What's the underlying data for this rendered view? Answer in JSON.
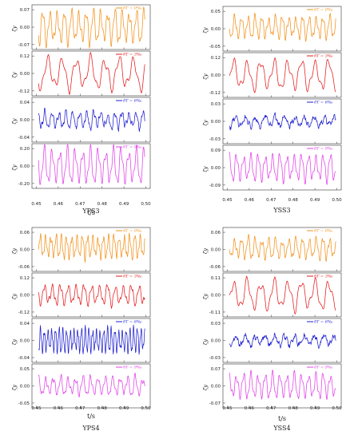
{
  "figure": {
    "colors": {
      "orange": "#f2921c",
      "red": "#e31a1c",
      "blue": "#1f1fd0",
      "magenta": "#e040e8"
    }
  },
  "chart_data": [
    {
      "id": "YPS3",
      "type": "line",
      "caption": "YPS3",
      "xlabel": "t/s",
      "xlim": [
        0.448,
        0.502
      ],
      "xticks": [
        "0.45",
        "0.46",
        "0.47",
        "0.48",
        "0.49",
        "0.50"
      ],
      "panels": [
        {
          "legend": "δT = 0‰",
          "color": "#f2921c",
          "ylabel": "ζy",
          "ylim": [
            -0.09,
            0.09
          ],
          "yticks": [
            "0.07",
            "0.00",
            "-0.07"
          ],
          "period": 0.0033,
          "amplitude": 0.055,
          "noise": 0.012,
          "dc": 0.0
        },
        {
          "legend": "δT = 3‰",
          "color": "#e31a1c",
          "ylabel": "ζy",
          "ylim": [
            -0.15,
            0.15
          ],
          "yticks": [
            "0.12",
            "0.00",
            "-0.12"
          ],
          "period": 0.0065,
          "amplitude": 0.09,
          "noise": 0.012,
          "dc": 0.0
        },
        {
          "legend": "δT = 6‰",
          "color": "#1f1fd0",
          "ylabel": "ζy",
          "ylim": [
            -0.06,
            0.06
          ],
          "yticks": [
            "0.04",
            "0.00",
            "-0.04"
          ],
          "period": 0.0032,
          "amplitude": 0.018,
          "noise": 0.012,
          "dc": 0.0
        },
        {
          "legend": "δT = 9‰",
          "color": "#e040e8",
          "ylabel": "ζy",
          "ylim": [
            -0.27,
            0.27
          ],
          "yticks": [
            "0.20",
            "0.00",
            "-0.20"
          ],
          "period": 0.0035,
          "amplitude": 0.18,
          "noise": 0.004,
          "dc": 0.0
        }
      ]
    },
    {
      "id": "YSS3",
      "type": "line",
      "caption": "YSS3",
      "xlabel": "",
      "xlim": [
        0.448,
        0.502
      ],
      "xticks": [
        "0.45",
        "0.46",
        "0.47",
        "0.48",
        "0.49",
        "0.50"
      ],
      "panels": [
        {
          "legend": "δT = 0‰",
          "color": "#f2921c",
          "ylabel": "ζy",
          "ylim": [
            -0.075,
            0.075
          ],
          "yticks": [
            "0.05",
            "0.00",
            "-0.05"
          ],
          "period": 0.0031,
          "amplitude": 0.032,
          "noise": 0.009,
          "dc": 0.005
        },
        {
          "legend": "δT = 3‰",
          "color": "#e31a1c",
          "ylabel": "ζy",
          "ylim": [
            -0.16,
            0.16
          ],
          "yticks": [
            "0.12",
            "0.00",
            "-0.12"
          ],
          "period": 0.0062,
          "amplitude": 0.09,
          "noise": 0.01,
          "dc": 0.0
        },
        {
          "legend": "δT = 6‰",
          "color": "#1f1fd0",
          "ylabel": "ζy",
          "ylim": [
            -0.045,
            0.045
          ],
          "yticks": [
            "0.03",
            "0.00",
            "-0.03"
          ],
          "period": 0.0045,
          "amplitude": 0.008,
          "noise": 0.01,
          "dc": 0.0
        },
        {
          "legend": "δT = 9‰",
          "color": "#e040e8",
          "ylabel": "ζy",
          "ylim": [
            -0.12,
            0.12
          ],
          "yticks": [
            "0.09",
            "0.00",
            "-0.09"
          ],
          "period": 0.0033,
          "amplitude": 0.06,
          "noise": 0.004,
          "dc": 0.0
        }
      ]
    },
    {
      "id": "YPS4",
      "type": "line",
      "caption": "YPS4",
      "xlabel": "t/s",
      "xlim": [
        0.448,
        0.502
      ],
      "xticks": [
        "0.45",
        "0.46",
        "0.47",
        "0.48",
        "0.49",
        "0.50"
      ],
      "panels": [
        {
          "legend": "δT = 0‰",
          "color": "#f2921c",
          "ylabel": "ζy",
          "ylim": [
            -0.08,
            0.08
          ],
          "yticks": [
            "0.06",
            "0.00",
            "-0.06"
          ],
          "period": 0.0024,
          "amplitude": 0.035,
          "noise": 0.012,
          "dc": 0.01
        },
        {
          "legend": "δT = 3‰",
          "color": "#e31a1c",
          "ylabel": "ζy",
          "ylim": [
            -0.16,
            0.16
          ],
          "yticks": [
            "0.12",
            "0.00",
            "-0.12"
          ],
          "period": 0.0036,
          "amplitude": 0.06,
          "noise": 0.02,
          "dc": 0.0
        },
        {
          "legend": "δT = 6‰",
          "color": "#1f1fd0",
          "ylabel": "ζy",
          "ylim": [
            -0.055,
            0.055
          ],
          "yticks": [
            "0.04",
            "0.00",
            "-0.04"
          ],
          "period": 0.0017,
          "amplitude": 0.026,
          "noise": 0.005,
          "dc": 0.0
        },
        {
          "legend": "δT = 9‰",
          "color": "#e040e8",
          "ylabel": "ζy",
          "ylim": [
            -0.07,
            0.07
          ],
          "yticks": [
            "0.05",
            "0.00",
            "-0.05"
          ],
          "period": 0.0034,
          "amplitude": 0.025,
          "noise": 0.009,
          "dc": 0.0
        }
      ]
    },
    {
      "id": "YSS4",
      "type": "line",
      "caption": "YSS4",
      "xlabel": "t/s",
      "xlim": [
        0.448,
        0.502
      ],
      "xticks": [
        "0.45",
        "0.46",
        "0.47",
        "0.48",
        "0.49",
        "0.50"
      ],
      "panels": [
        {
          "legend": "δT = 0‰",
          "color": "#f2921c",
          "ylabel": "ζy",
          "ylim": [
            -0.08,
            0.08
          ],
          "yticks": [
            "0.06",
            "0.00",
            "-0.06"
          ],
          "period": 0.0031,
          "amplitude": 0.032,
          "noise": 0.01,
          "dc": 0.005
        },
        {
          "legend": "δT = 3‰",
          "color": "#e31a1c",
          "ylabel": "ζy",
          "ylim": [
            -0.15,
            0.15
          ],
          "yticks": [
            "0.11",
            "0.00",
            "-0.11"
          ],
          "period": 0.0062,
          "amplitude": 0.085,
          "noise": 0.01,
          "dc": 0.0
        },
        {
          "legend": "δT = 6‰",
          "color": "#1f1fd0",
          "ylabel": "ζy",
          "ylim": [
            -0.045,
            0.045
          ],
          "yticks": [
            "0.03",
            "0.00",
            "-0.03"
          ],
          "period": 0.0045,
          "amplitude": 0.008,
          "noise": 0.01,
          "dc": 0.0
        },
        {
          "legend": "δT = 9‰",
          "color": "#e040e8",
          "ylabel": "ζy",
          "ylim": [
            -0.095,
            0.095
          ],
          "yticks": [
            "0.07",
            "0.00",
            "-0.07"
          ],
          "period": 0.0033,
          "amplitude": 0.045,
          "noise": 0.008,
          "dc": 0.0
        }
      ]
    }
  ]
}
